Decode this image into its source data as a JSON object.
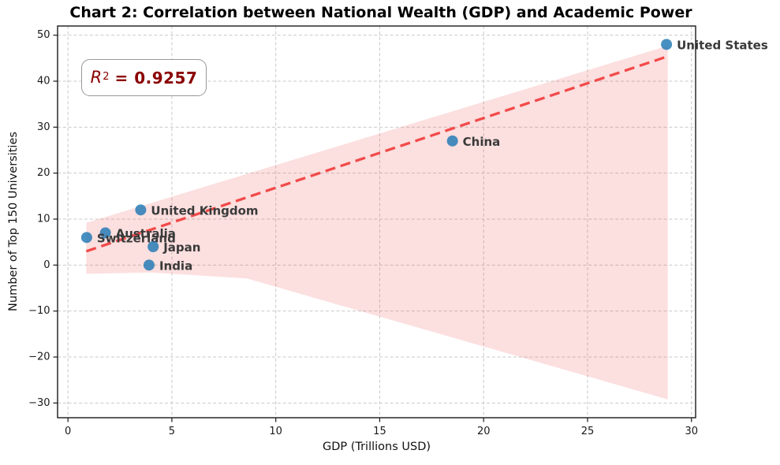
{
  "chart_data": {
    "type": "scatter",
    "title": "Chart 2: Correlation between National Wealth (GDP) and Academic Power",
    "xlabel": "GDP (Trillions USD)",
    "ylabel": "Number of Top 150 Universities",
    "xlim": [
      -0.5,
      30.2
    ],
    "ylim": [
      -33.2,
      52.0
    ],
    "xticks": [
      0,
      5,
      10,
      15,
      20,
      25,
      30
    ],
    "yticks": [
      -30,
      -20,
      -10,
      0,
      10,
      20,
      30,
      40,
      50
    ],
    "grid": true,
    "legend": false,
    "points": [
      {
        "label": "United States",
        "x": 28.8,
        "y": 48
      },
      {
        "label": "China",
        "x": 18.5,
        "y": 27
      },
      {
        "label": "United Kingdom",
        "x": 3.5,
        "y": 12
      },
      {
        "label": "Australia",
        "x": 1.8,
        "y": 7
      },
      {
        "label": "Switzerland",
        "x": 0.9,
        "y": 6
      },
      {
        "label": "Japan",
        "x": 4.1,
        "y": 4
      },
      {
        "label": "India",
        "x": 3.9,
        "y": 0
      }
    ],
    "regression": {
      "r_squared": 0.9257,
      "trend_line": {
        "x1": 0.88,
        "y1": 3.0,
        "x2": 28.86,
        "y2": 45.4
      },
      "confidence_band": [
        [
          0.88,
          9.2
        ],
        [
          28.86,
          47.7
        ],
        [
          28.86,
          -29.2
        ],
        [
          8.6,
          -2.9
        ],
        [
          4.0,
          -1.6
        ],
        [
          0.88,
          -1.9
        ]
      ]
    },
    "annotation": {
      "r_label": "R",
      "r_exp": "2",
      "r_value": "= 0.9257"
    },
    "colors": {
      "marker": "#1f77b4",
      "marker_opacity": 0.82,
      "trend": "#f03030",
      "trend_opacity": 0.85,
      "band": "#f05050",
      "band_opacity": 0.18,
      "annotation_text": "#8b0000",
      "point_label_text": "#3a3a3a",
      "grid": "#c9c9c9",
      "spine": "#1a1a1a",
      "tick_text": "#1a1a1a"
    }
  }
}
